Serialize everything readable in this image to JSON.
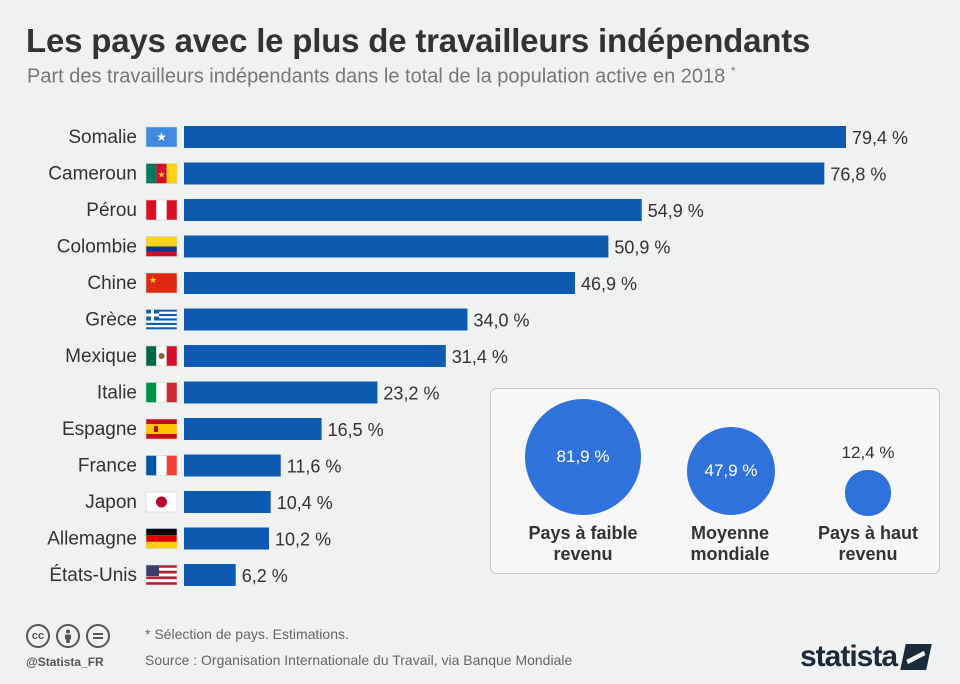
{
  "header": {
    "title": "Les pays avec le plus de travailleurs indépendants",
    "subtitle": "Part des travailleurs indépendants dans le total de la population active en 2018",
    "subtitle_mark": "*"
  },
  "colors": {
    "bar": "#0d5ab0",
    "circle": "#2f72dc",
    "text": "#333333"
  },
  "chart_data": {
    "type": "bar",
    "orientation": "horizontal",
    "categories": [
      "Somalie",
      "Cameroun",
      "Pérou",
      "Colombie",
      "Chine",
      "Grèce",
      "Mexique",
      "Italie",
      "Espagne",
      "France",
      "Japon",
      "Allemagne",
      "États-Unis"
    ],
    "values": [
      79.4,
      76.8,
      54.9,
      50.9,
      46.9,
      34.0,
      31.4,
      23.2,
      16.5,
      11.6,
      10.4,
      10.2,
      6.2
    ],
    "value_labels": [
      "79,4 %",
      "76,8 %",
      "54,9 %",
      "50,9 %",
      "46,9 %",
      "34,0 %",
      "31,4 %",
      "23,2 %",
      "16,5 %",
      "11,6 %",
      "10,4 %",
      "10,2 %",
      "6,2 %"
    ],
    "flags": [
      "somalia-flag",
      "cameroon-flag",
      "peru-flag",
      "colombia-flag",
      "china-flag",
      "greece-flag",
      "mexico-flag",
      "italy-flag",
      "spain-flag",
      "france-flag",
      "japan-flag",
      "germany-flag",
      "usa-flag"
    ],
    "xlim": [
      0,
      80
    ],
    "grid": false,
    "legend": "none"
  },
  "inset": {
    "items": [
      {
        "value": 81.9,
        "value_label": "81,9 %",
        "label_line1": "Pays à faible",
        "label_line2": "revenu"
      },
      {
        "value": 47.9,
        "value_label": "47,9 %",
        "label_line1": "Moyenne",
        "label_line2": "mondiale"
      },
      {
        "value": 12.4,
        "value_label": "12,4 %",
        "label_line1": "Pays à haut",
        "label_line2": "revenu"
      }
    ]
  },
  "footer": {
    "license_icons": [
      "cc-icon",
      "by-icon",
      "nd-icon"
    ],
    "handle": "@Statista_FR",
    "note": "* Sélection de pays. Estimations.",
    "source": "Source : Organisation Internationale du Travail, via Banque Mondiale",
    "logo": "statista"
  }
}
